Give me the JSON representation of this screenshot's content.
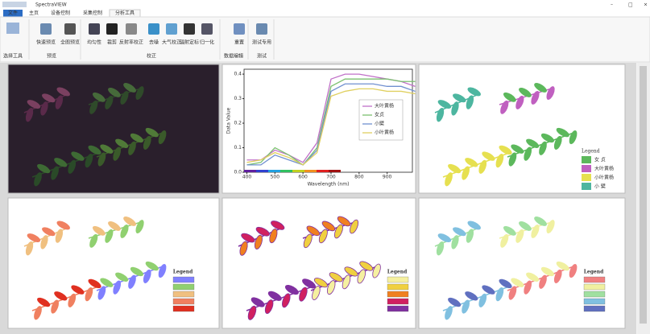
{
  "window": {
    "title": "SpectraVIEW"
  },
  "tabs": [
    "文件",
    "主页",
    "设备控制",
    "采集控制",
    "分析工具"
  ],
  "active_tab": 4,
  "ribbon": {
    "buttons": [
      "快速预览",
      "全图预览",
      "均匀性",
      "裁剪",
      "反射率校正",
      "去噪",
      "大气校正",
      "辐射定标",
      "归一化",
      "重置",
      "测试专用"
    ],
    "groups": [
      "选择工具",
      "预览",
      "校正",
      "数据编辑",
      "测试"
    ]
  },
  "spectral_chart": {
    "type": "line",
    "x_label": "Wavelength (nm)",
    "y_label": "Data Value",
    "x": [
      400,
      450,
      500,
      550,
      600,
      650,
      700,
      750,
      800,
      850,
      900,
      950,
      1000
    ],
    "series": [
      {
        "name": "大叶黄杨",
        "color": "#c070c8",
        "values": [
          0.05,
          0.05,
          0.09,
          0.07,
          0.04,
          0.12,
          0.38,
          0.4,
          0.4,
          0.39,
          0.38,
          0.37,
          0.35
        ]
      },
      {
        "name": "女贞",
        "color": "#7cc070",
        "values": [
          0.03,
          0.04,
          0.1,
          0.07,
          0.03,
          0.1,
          0.35,
          0.38,
          0.38,
          0.38,
          0.38,
          0.37,
          0.37
        ]
      },
      {
        "name": "小檗",
        "color": "#7090d0",
        "values": [
          0.03,
          0.03,
          0.07,
          0.05,
          0.03,
          0.09,
          0.33,
          0.36,
          0.36,
          0.36,
          0.35,
          0.35,
          0.33
        ]
      },
      {
        "name": "小叶黄杨",
        "color": "#e0d060",
        "values": [
          0.04,
          0.05,
          0.08,
          0.06,
          0.03,
          0.08,
          0.31,
          0.33,
          0.34,
          0.34,
          0.33,
          0.33,
          0.32
        ]
      }
    ],
    "xlim": [
      390,
      990
    ],
    "ylim": [
      0,
      0.42
    ],
    "xticks": [
      400,
      500,
      600,
      700,
      800,
      900
    ],
    "yticks": [
      {
        "value": 0,
        "label": "0.0"
      },
      0.1,
      0.2,
      0.3,
      0.4
    ]
  },
  "class_legend": {
    "title": "Legend",
    "items": [
      {
        "label": "女 贞",
        "color": "#5cb85c"
      },
      {
        "label": "大叶黄杨",
        "color": "#c060c0"
      },
      {
        "label": "小叶黄杨",
        "color": "#e6e050"
      },
      {
        "label": "小 檗",
        "color": "#4db6a0"
      }
    ]
  },
  "index_maps": [
    {
      "title": "Legend",
      "colors": [
        "#8080ff",
        "#90d070",
        "#f0c080",
        "#f08060",
        "#e03020"
      ]
    },
    {
      "title": "Legend",
      "colors": [
        "#f5f0a0",
        "#f0d040",
        "#f08020",
        "#d02060",
        "#8030a0"
      ]
    },
    {
      "title": "Legend",
      "colors": [
        "#f08080",
        "#f0f0a0",
        "#a0e0a0",
        "#80c0e0",
        "#6070c0"
      ]
    }
  ]
}
